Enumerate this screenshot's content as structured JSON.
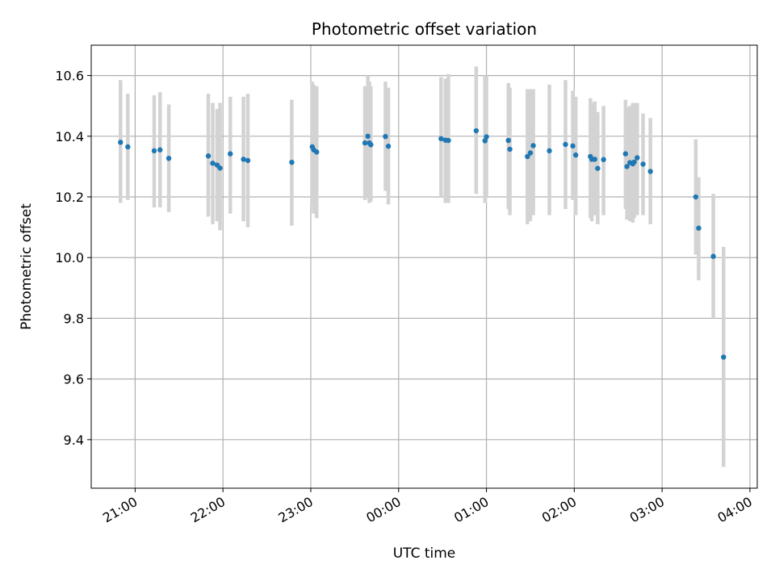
{
  "chart_data": {
    "type": "scatter",
    "title": "Photometric offset variation",
    "xlabel": "UTC time",
    "ylabel": "Photometric offset",
    "x_ticks": [
      "21:00",
      "22:00",
      "23:00",
      "00:00",
      "01:00",
      "02:00",
      "03:00",
      "04:00"
    ],
    "y_ticks": [
      "9.4",
      "9.6",
      "9.8",
      "10.0",
      "10.2",
      "10.4",
      "10.6"
    ],
    "xlim": [
      "20:30",
      "04:05"
    ],
    "ylim": [
      9.24,
      10.7
    ],
    "grid": true,
    "colors": {
      "points": "#1f77b4",
      "error_bars": "#d3d3d3",
      "grid": "#b0b0b0"
    },
    "series": [
      {
        "x": [
          "20:50",
          "20:55",
          "21:13",
          "21:17",
          "21:23",
          "21:50",
          "21:53",
          "21:56",
          "21:58",
          "22:05",
          "22:14",
          "22:17",
          "22:47",
          "23:01",
          "23:02",
          "23:04",
          "23:37",
          "23:39",
          "23:40",
          "23:41",
          "23:51",
          "23:53",
          "00:29",
          "00:32",
          "00:34",
          "00:53",
          "00:59",
          "01:00",
          "01:15",
          "01:16",
          "01:28",
          "01:30",
          "01:32",
          "01:43",
          "01:54",
          "01:59",
          "02:01",
          "02:11",
          "02:12",
          "02:14",
          "02:16",
          "02:20",
          "02:35",
          "02:36",
          "02:38",
          "02:40",
          "02:41",
          "02:43",
          "02:47",
          "02:52",
          "03:23",
          "03:25",
          "03:35",
          "03:42"
        ],
        "y": [
          10.38,
          10.365,
          10.352,
          10.355,
          10.327,
          10.335,
          10.311,
          10.305,
          10.295,
          10.342,
          10.324,
          10.32,
          10.314,
          10.365,
          10.355,
          10.348,
          10.378,
          10.4,
          10.378,
          10.372,
          10.399,
          10.367,
          10.392,
          10.387,
          10.386,
          10.418,
          10.385,
          10.398,
          10.386,
          10.357,
          10.333,
          10.345,
          10.369,
          10.352,
          10.373,
          10.368,
          10.338,
          10.333,
          10.324,
          10.324,
          10.294,
          10.323,
          10.342,
          10.3,
          10.313,
          10.309,
          10.315,
          10.329,
          10.308,
          10.284,
          10.2,
          10.097,
          10.004,
          9.672
        ],
        "err_low": [
          10.18,
          10.19,
          10.165,
          10.165,
          10.15,
          10.135,
          10.11,
          10.12,
          10.09,
          10.145,
          10.12,
          10.1,
          10.105,
          10.17,
          10.145,
          10.13,
          10.19,
          10.2,
          10.18,
          10.185,
          10.22,
          10.175,
          10.2,
          10.18,
          10.18,
          10.21,
          10.18,
          10.2,
          10.16,
          10.14,
          10.11,
          10.12,
          10.14,
          10.14,
          10.16,
          10.19,
          10.14,
          10.13,
          10.12,
          10.14,
          10.11,
          10.14,
          10.16,
          10.125,
          10.12,
          10.115,
          10.13,
          10.14,
          10.14,
          10.11,
          10.01,
          9.925,
          9.8,
          9.31
        ],
        "err_high": [
          10.585,
          10.54,
          10.535,
          10.545,
          10.505,
          10.54,
          10.51,
          10.49,
          10.51,
          10.53,
          10.53,
          10.54,
          10.52,
          10.58,
          10.57,
          10.565,
          10.565,
          10.6,
          10.58,
          10.565,
          10.58,
          10.56,
          10.595,
          10.59,
          10.605,
          10.63,
          10.6,
          10.6,
          10.575,
          10.56,
          10.555,
          10.555,
          10.555,
          10.57,
          10.585,
          10.55,
          10.53,
          10.525,
          10.51,
          10.515,
          10.48,
          10.5,
          10.52,
          10.495,
          10.5,
          10.51,
          10.51,
          10.51,
          10.475,
          10.46,
          10.39,
          10.265,
          10.21,
          10.035
        ]
      }
    ]
  }
}
